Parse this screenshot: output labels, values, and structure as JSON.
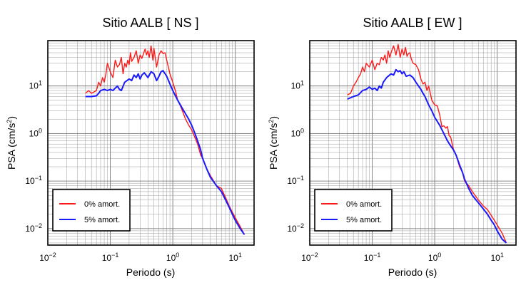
{
  "colors": {
    "damp0": "#ff1a1a",
    "damp5": "#1a1aff"
  },
  "chart_data": [
    {
      "type": "line",
      "title": "Sitio AALB [ NS ]",
      "xlabel": "Periodo (s)",
      "ylabel_main": "PSA (cm/s",
      "ylabel_sup": "2",
      "ylabel_close": ")",
      "xscale": "log",
      "yscale": "log",
      "xlim": [
        0.01,
        20
      ],
      "ylim": [
        0.0045,
        90
      ],
      "grid": true,
      "legend_position": "bottom-left",
      "x_ticks": [
        {
          "value": 0.01,
          "base": "10",
          "exp": "−2"
        },
        {
          "value": 0.1,
          "base": "10",
          "exp": "−1"
        },
        {
          "value": 1,
          "base": "10",
          "exp": "0"
        },
        {
          "value": 10,
          "base": "10",
          "exp": "1"
        }
      ],
      "y_ticks": [
        {
          "value": 0.01,
          "base": "10",
          "exp": "−2"
        },
        {
          "value": 0.1,
          "base": "10",
          "exp": "−1"
        },
        {
          "value": 1,
          "base": "10",
          "exp": "0"
        },
        {
          "value": 10,
          "base": "10",
          "exp": "1"
        }
      ],
      "series": [
        {
          "name": "0% amort.",
          "color_key": "damp0",
          "x": [
            0.04,
            0.045,
            0.05,
            0.055,
            0.06,
            0.065,
            0.07,
            0.075,
            0.08,
            0.085,
            0.09,
            0.1,
            0.11,
            0.12,
            0.13,
            0.14,
            0.15,
            0.16,
            0.17,
            0.18,
            0.19,
            0.2,
            0.21,
            0.22,
            0.24,
            0.26,
            0.28,
            0.3,
            0.32,
            0.34,
            0.36,
            0.38,
            0.4,
            0.42,
            0.45,
            0.48,
            0.5,
            0.55,
            0.6,
            0.65,
            0.7,
            0.75,
            0.8,
            0.9,
            1.0,
            1.1,
            1.2,
            1.3,
            1.4,
            1.5,
            1.6,
            1.8,
            2.0,
            2.2,
            2.5,
            2.8,
            3.0,
            3.5,
            4.0,
            5.0,
            6.0,
            7.0,
            8.0,
            9.0,
            10,
            12,
            14
          ],
          "y": [
            7,
            8,
            7,
            7.5,
            8,
            12,
            10,
            15,
            12,
            18,
            30,
            20,
            15,
            35,
            25,
            28,
            40,
            18,
            30,
            25,
            35,
            28,
            50,
            33,
            40,
            55,
            30,
            45,
            38,
            48,
            60,
            45,
            55,
            40,
            70,
            35,
            62,
            25,
            45,
            55,
            48,
            50,
            35,
            18,
            12,
            8,
            5,
            4,
            3.2,
            2.5,
            2.0,
            1.5,
            1.2,
            0.9,
            0.6,
            0.35,
            0.3,
            0.18,
            0.13,
            0.08,
            0.07,
            0.045,
            0.03,
            0.022,
            0.017,
            0.011,
            0.0075
          ]
        },
        {
          "name": "5% amort.",
          "color_key": "damp5",
          "x": [
            0.04,
            0.05,
            0.06,
            0.065,
            0.07,
            0.08,
            0.09,
            0.1,
            0.11,
            0.12,
            0.13,
            0.14,
            0.15,
            0.17,
            0.2,
            0.22,
            0.24,
            0.26,
            0.28,
            0.3,
            0.32,
            0.35,
            0.4,
            0.45,
            0.5,
            0.55,
            0.6,
            0.65,
            0.7,
            0.8,
            0.9,
            1.0,
            1.2,
            1.4,
            1.6,
            1.8,
            2.0,
            2.2,
            2.5,
            2.8,
            3.0,
            3.5,
            4.0,
            5.0,
            6.0,
            7.0,
            8.0,
            9.0,
            10,
            12,
            14
          ],
          "y": [
            6,
            6,
            6.2,
            7,
            8,
            8.5,
            8,
            8.5,
            8,
            9,
            10,
            8.5,
            8,
            12,
            14,
            13,
            17,
            15,
            18,
            14,
            17,
            19,
            15,
            20,
            18,
            13,
            16,
            20,
            21,
            16,
            11,
            8,
            5,
            3.5,
            2.6,
            2.0,
            1.5,
            1.1,
            0.7,
            0.45,
            0.3,
            0.18,
            0.12,
            0.08,
            0.06,
            0.04,
            0.028,
            0.02,
            0.015,
            0.01,
            0.0075
          ]
        }
      ]
    },
    {
      "type": "line",
      "title": "Sitio AALB [ EW ]",
      "xlabel": "Periodo (s)",
      "ylabel_main": "PSA (cm/s",
      "ylabel_sup": "2",
      "ylabel_close": ")",
      "xscale": "log",
      "yscale": "log",
      "xlim": [
        0.01,
        20
      ],
      "ylim": [
        0.0045,
        90
      ],
      "grid": true,
      "legend_position": "bottom-left",
      "x_ticks": [
        {
          "value": 0.01,
          "base": "10",
          "exp": "−2"
        },
        {
          "value": 0.1,
          "base": "10",
          "exp": "−1"
        },
        {
          "value": 1,
          "base": "10",
          "exp": "0"
        },
        {
          "value": 10,
          "base": "10",
          "exp": "1"
        }
      ],
      "y_ticks": [
        {
          "value": 0.01,
          "base": "10",
          "exp": "−2"
        },
        {
          "value": 0.1,
          "base": "10",
          "exp": "−1"
        },
        {
          "value": 1,
          "base": "10",
          "exp": "0"
        },
        {
          "value": 10,
          "base": "10",
          "exp": "1"
        }
      ],
      "series": [
        {
          "name": "0% amort.",
          "color_key": "damp0",
          "x": [
            0.04,
            0.045,
            0.05,
            0.055,
            0.06,
            0.065,
            0.07,
            0.075,
            0.08,
            0.09,
            0.1,
            0.11,
            0.12,
            0.13,
            0.14,
            0.15,
            0.16,
            0.17,
            0.18,
            0.19,
            0.2,
            0.22,
            0.24,
            0.26,
            0.28,
            0.3,
            0.32,
            0.34,
            0.36,
            0.38,
            0.4,
            0.42,
            0.45,
            0.5,
            0.55,
            0.6,
            0.65,
            0.7,
            0.75,
            0.8,
            0.9,
            1.0,
            1.1,
            1.2,
            1.3,
            1.4,
            1.5,
            1.6,
            1.7,
            1.8,
            2.0,
            2.2,
            2.5,
            2.8,
            3.0,
            3.5,
            4.0,
            5.0,
            6.0,
            7.0,
            8.0,
            9.0,
            10,
            12,
            14
          ],
          "y": [
            6.5,
            7,
            10,
            12,
            15,
            18,
            25,
            20,
            30,
            25,
            35,
            22,
            30,
            28,
            40,
            35,
            45,
            30,
            55,
            40,
            50,
            70,
            45,
            75,
            40,
            60,
            45,
            65,
            42,
            48,
            50,
            38,
            30,
            28,
            22,
            14,
            11,
            12,
            8,
            10,
            5,
            4,
            3.8,
            2.5,
            1.4,
            1.45,
            1.3,
            1.4,
            0.9,
            0.85,
            0.45,
            0.35,
            0.2,
            0.15,
            0.1,
            0.08,
            0.06,
            0.04,
            0.03,
            0.025,
            0.019,
            0.015,
            0.012,
            0.008,
            0.005
          ]
        },
        {
          "name": "5% amort.",
          "color_key": "damp5",
          "x": [
            0.04,
            0.05,
            0.06,
            0.07,
            0.08,
            0.09,
            0.1,
            0.11,
            0.12,
            0.13,
            0.14,
            0.15,
            0.17,
            0.2,
            0.22,
            0.24,
            0.26,
            0.28,
            0.3,
            0.32,
            0.35,
            0.4,
            0.45,
            0.5,
            0.55,
            0.6,
            0.65,
            0.7,
            0.8,
            0.9,
            1.0,
            1.2,
            1.4,
            1.6,
            1.8,
            2.0,
            2.2,
            2.5,
            2.8,
            3.0,
            3.5,
            4.0,
            5.0,
            6.0,
            7.0,
            8.0,
            9.0,
            10,
            12,
            14
          ],
          "y": [
            5.3,
            6,
            6.5,
            8,
            8.5,
            9.5,
            8.5,
            9,
            8,
            10,
            9,
            12,
            15,
            18,
            17,
            22,
            20,
            21,
            18,
            20,
            16,
            17,
            15,
            12,
            10,
            8.5,
            7,
            6,
            4,
            3,
            2.2,
            1.5,
            1.0,
            0.7,
            0.55,
            0.45,
            0.35,
            0.22,
            0.15,
            0.11,
            0.07,
            0.05,
            0.035,
            0.026,
            0.02,
            0.015,
            0.012,
            0.009,
            0.006,
            0.005
          ]
        }
      ]
    }
  ]
}
